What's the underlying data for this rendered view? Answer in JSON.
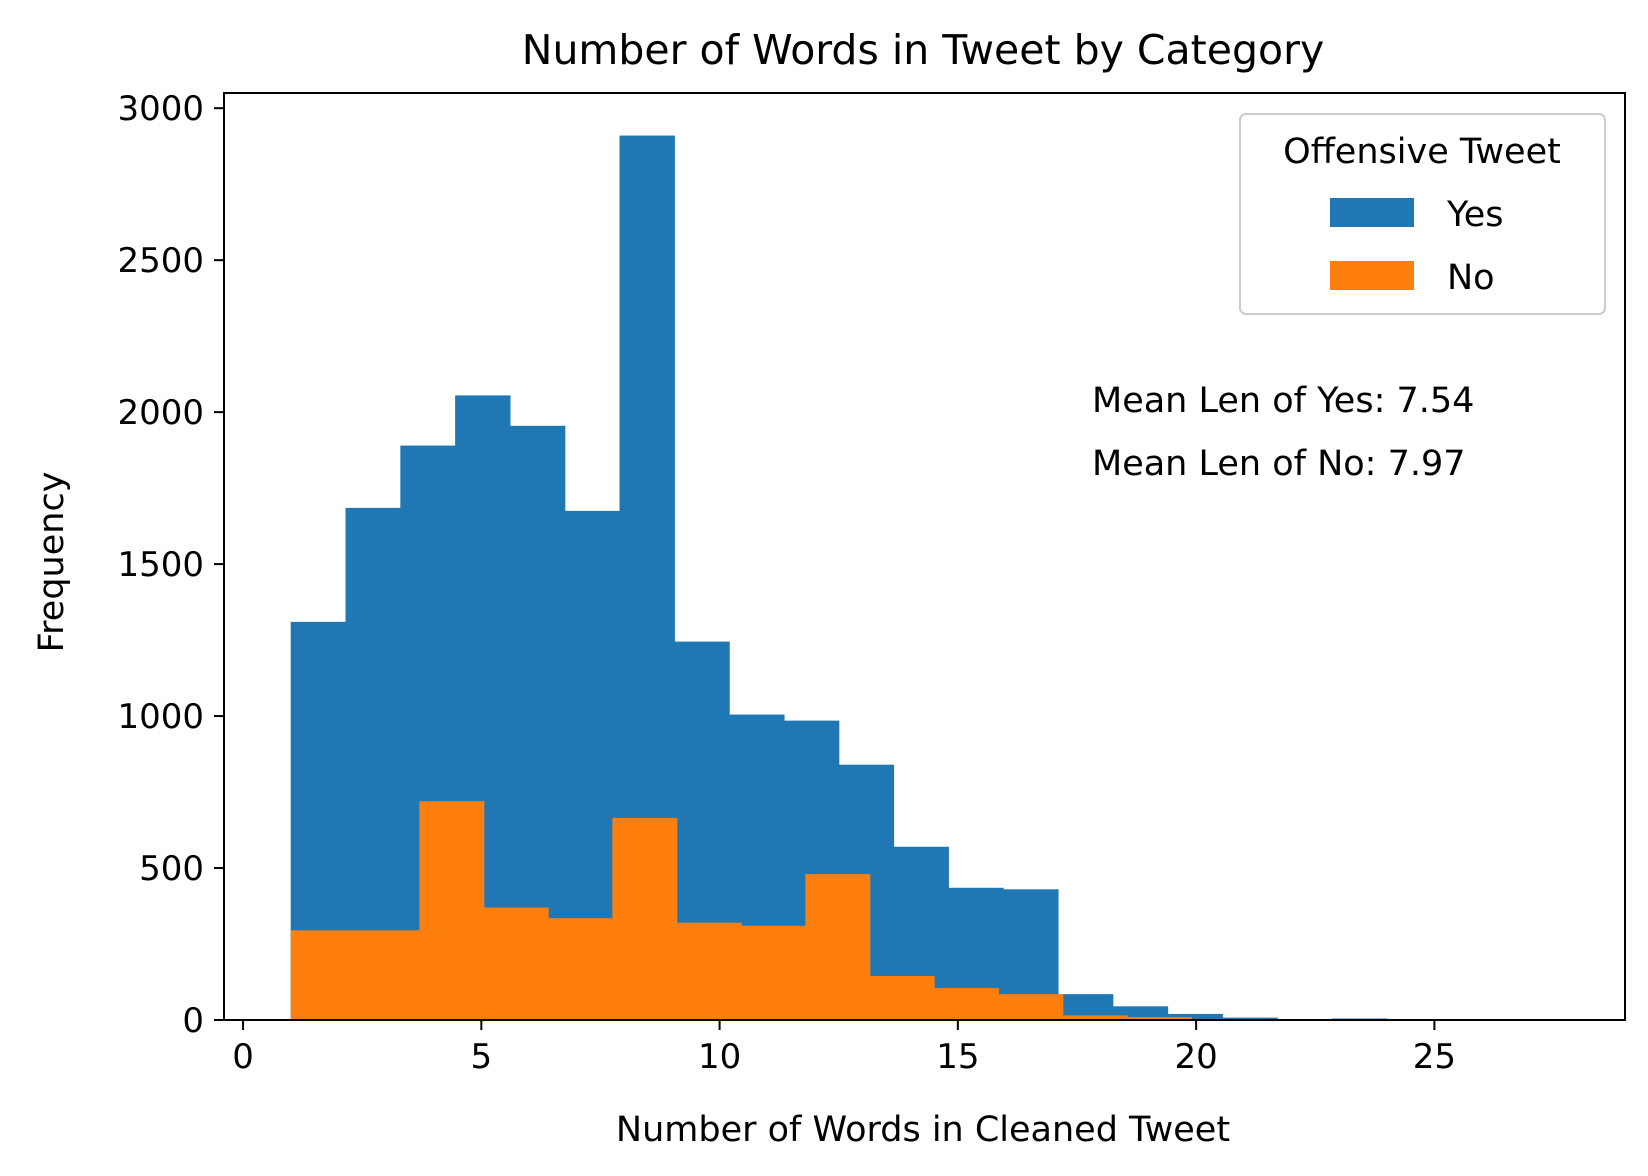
{
  "chart_data": {
    "type": "bar",
    "title": "Number of Words in Tweet by Category",
    "xlabel": "Number of Words in Cleaned Tweet",
    "ylabel": "Frequency",
    "xlim": [
      -0.4,
      29.0
    ],
    "ylim": [
      0,
      3050
    ],
    "xticks": [
      0,
      5,
      10,
      15,
      20,
      25
    ],
    "yticks": [
      0,
      500,
      1000,
      1500,
      2000,
      2500,
      3000
    ],
    "grid": false,
    "legend": {
      "title": "Offensive Tweet",
      "position": "top-right"
    },
    "series": [
      {
        "name": "Yes",
        "color": "#1f77b4",
        "bins": [
          [
            1.0,
            2.15,
            1310
          ],
          [
            2.15,
            3.3,
            1685
          ],
          [
            3.3,
            4.45,
            1890
          ],
          [
            4.45,
            5.6,
            2055
          ],
          [
            5.6,
            6.75,
            1955
          ],
          [
            6.75,
            7.9,
            1675
          ],
          [
            7.9,
            9.05,
            2910
          ],
          [
            9.05,
            10.2,
            1245
          ],
          [
            10.2,
            11.35,
            1005
          ],
          [
            11.35,
            12.5,
            985
          ],
          [
            12.5,
            13.65,
            840
          ],
          [
            13.65,
            14.8,
            570
          ],
          [
            14.8,
            15.95,
            435
          ],
          [
            15.95,
            17.1,
            430
          ],
          [
            17.1,
            18.25,
            85
          ],
          [
            18.25,
            19.4,
            45
          ],
          [
            19.4,
            20.55,
            20
          ],
          [
            20.55,
            21.7,
            8
          ],
          [
            21.7,
            22.85,
            3
          ],
          [
            22.85,
            24.0,
            5
          ],
          [
            24.0,
            25.15,
            1
          ],
          [
            25.15,
            26.3,
            1
          ],
          [
            26.3,
            27.45,
            0
          ],
          [
            27.45,
            28.6,
            1
          ]
        ]
      },
      {
        "name": "No",
        "color": "#ff7f0e",
        "bins": [
          [
            1.0,
            2.35,
            295
          ],
          [
            2.35,
            3.7,
            295
          ],
          [
            3.7,
            5.05,
            720
          ],
          [
            5.05,
            6.4,
            370
          ],
          [
            6.4,
            7.75,
            335
          ],
          [
            7.75,
            9.1,
            665
          ],
          [
            9.1,
            10.45,
            320
          ],
          [
            10.45,
            11.8,
            310
          ],
          [
            11.8,
            13.15,
            480
          ],
          [
            13.15,
            14.5,
            145
          ],
          [
            14.5,
            15.85,
            105
          ],
          [
            15.85,
            17.2,
            85
          ],
          [
            17.2,
            18.55,
            15
          ],
          [
            18.55,
            19.9,
            10
          ],
          [
            19.9,
            21.25,
            2
          ]
        ]
      }
    ],
    "annotations": [
      "Mean Len of Yes: 7.54",
      "Mean Len of No: 7.97"
    ]
  }
}
